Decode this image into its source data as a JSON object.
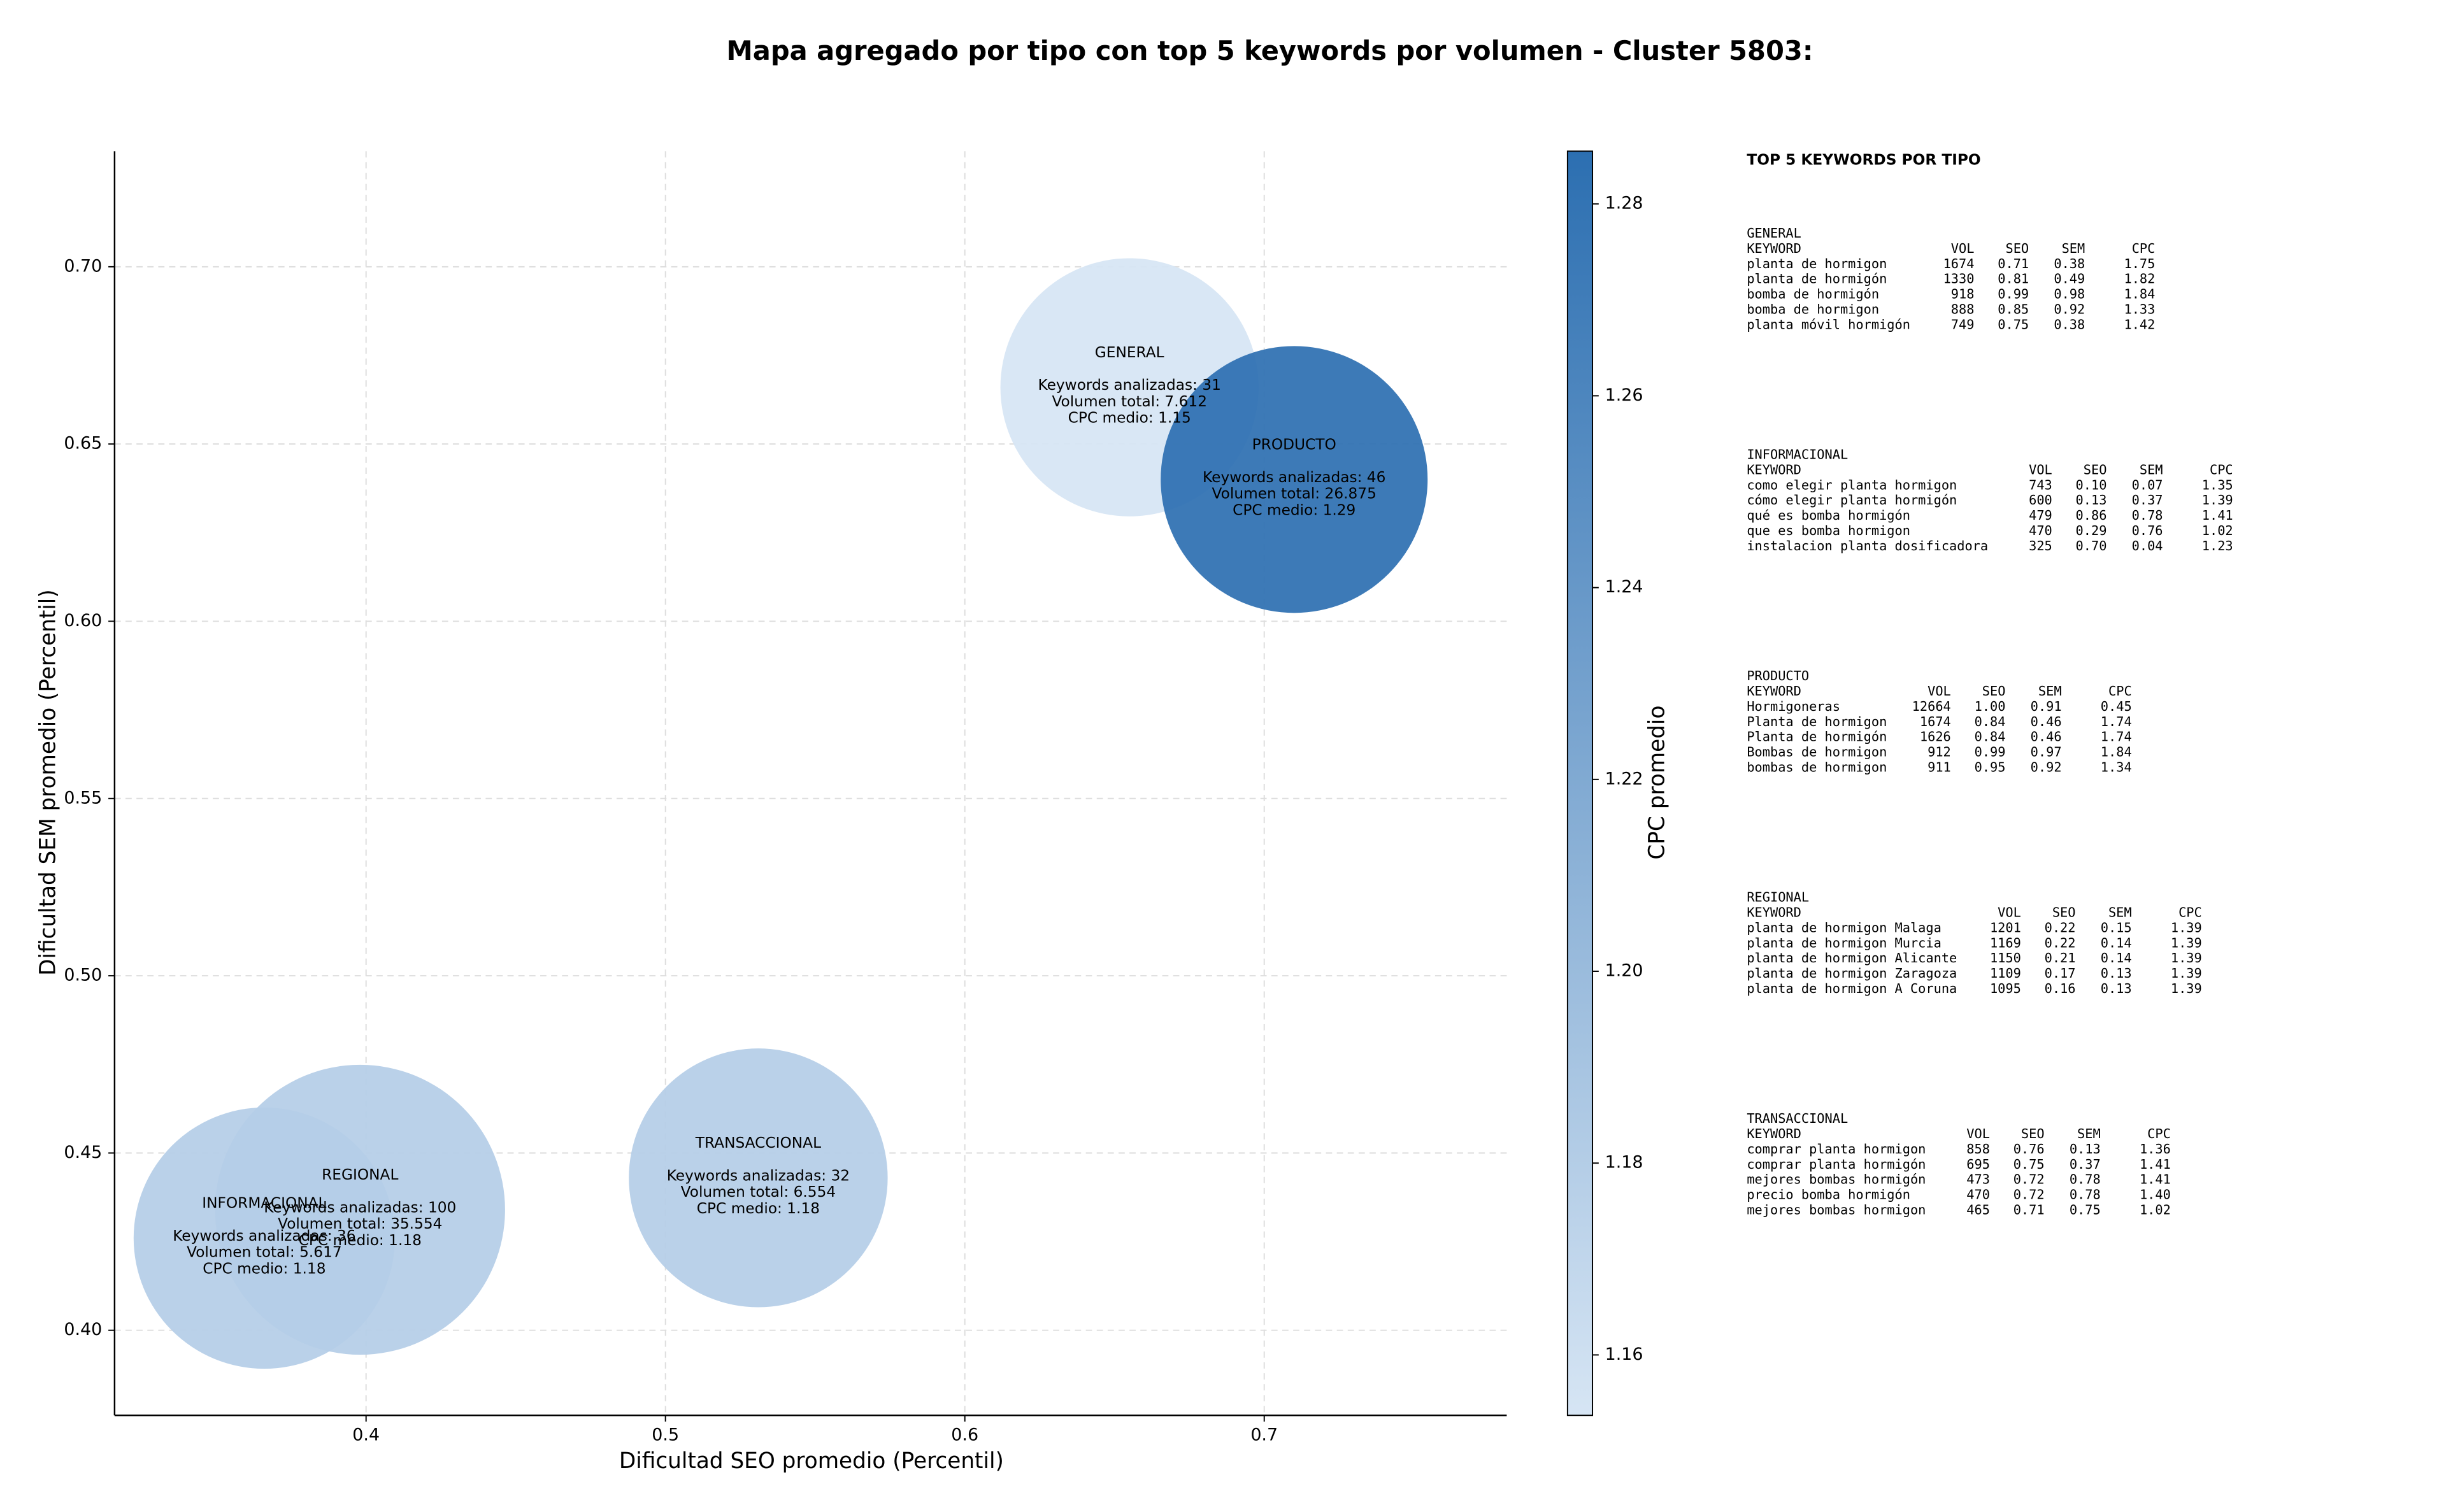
{
  "chart_data": {
    "type": "bubble",
    "title": "Mapa agregado por tipo con top 5 keywords por volumen - Cluster 5803:",
    "xlabel": "Dificultad SEO promedio (Percentil)",
    "ylabel": "Dificultad SEM promedio (Percentil)",
    "categories": [
      "GENERAL",
      "INFORMACIONAL",
      "PRODUCTO",
      "REGIONAL",
      "TRANSACCIONAL"
    ],
    "x": [
      0.655,
      0.366,
      0.71,
      0.398,
      0.531
    ],
    "values": [
      0.666,
      0.426,
      0.64,
      0.434,
      0.443
    ],
    "sizes": [
      31,
      36,
      46,
      100,
      32
    ],
    "cpc": [
      1.154,
      1.18,
      1.285,
      1.18,
      1.18
    ],
    "details": [
      [
        "Keywords analizadas: 31",
        "Volumen total: 7.612",
        "CPC medio: 1.15"
      ],
      [
        "Keywords analizadas: 36",
        "Volumen total: 5.617",
        "CPC medio: 1.18"
      ],
      [
        "Keywords analizadas: 46",
        "Volumen total: 26.875",
        "CPC medio: 1.29"
      ],
      [
        "Keywords analizadas: 100",
        "Volumen total: 35.554",
        "CPC medio: 1.18"
      ],
      [
        "Keywords analizadas: 32",
        "Volumen total: 6.554",
        "CPC medio: 1.18"
      ]
    ],
    "xlim": [
      0.316,
      0.781
    ],
    "ylim": [
      0.376,
      0.7326
    ],
    "xticks": [
      0.4,
      0.5,
      0.6,
      0.7
    ],
    "yticks": [
      {
        "value": 0.4,
        "label": "0.40"
      },
      0.45,
      {
        "value": 0.5,
        "label": "0.50"
      },
      0.55,
      {
        "value": 0.6,
        "label": "0.60"
      },
      0.65,
      {
        "value": 0.7,
        "label": "0.70"
      }
    ],
    "grid": true,
    "colorbar_label": "CPC promedio",
    "clim": [
      1.1537,
      1.2855
    ],
    "cticks": [
      1.16,
      1.18,
      {
        "value": 1.2,
        "label": "1.20"
      },
      1.22,
      1.24,
      1.26,
      1.28
    ],
    "colormap": [
      "#d6e5f4",
      "#2c6fb1"
    ]
  },
  "side_panel": {
    "title": "TOP 5 KEYWORDS POR TIPO",
    "header": [
      "KEYWORD",
      "VOL",
      "SEO",
      "SEM",
      "CPC"
    ],
    "sections": [
      {
        "name": "GENERAL",
        "rows": [
          [
            "planta de hormigon",
            "1674",
            "0.71",
            "0.38",
            "1.75"
          ],
          [
            "planta de hormigón",
            "1330",
            "0.81",
            "0.49",
            "1.82"
          ],
          [
            "bomba de hormigón",
            "918",
            "0.99",
            "0.98",
            "1.84"
          ],
          [
            "bomba de hormigon",
            "888",
            "0.85",
            "0.92",
            "1.33"
          ],
          [
            "planta móvil hormigón",
            "749",
            "0.75",
            "0.38",
            "1.42"
          ]
        ]
      },
      {
        "name": "INFORMACIONAL",
        "rows": [
          [
            "como elegir planta hormigon",
            "743",
            "0.10",
            "0.07",
            "1.35"
          ],
          [
            "cómo elegir planta hormigón",
            "600",
            "0.13",
            "0.37",
            "1.39"
          ],
          [
            "qué es bomba hormigón",
            "479",
            "0.86",
            "0.78",
            "1.41"
          ],
          [
            "que es bomba hormigon",
            "470",
            "0.29",
            "0.76",
            "1.02"
          ],
          [
            "instalacion planta dosificadora",
            "325",
            "0.70",
            "0.04",
            "1.23"
          ]
        ]
      },
      {
        "name": "PRODUCTO",
        "rows": [
          [
            "Hormigoneras",
            "12664",
            "1.00",
            "0.91",
            "0.45"
          ],
          [
            "Planta de hormigon",
            "1674",
            "0.84",
            "0.46",
            "1.74"
          ],
          [
            "Planta de hormigón",
            "1626",
            "0.84",
            "0.46",
            "1.74"
          ],
          [
            "Bombas de hormigon",
            "912",
            "0.99",
            "0.97",
            "1.84"
          ],
          [
            "bombas de hormigon",
            "911",
            "0.95",
            "0.92",
            "1.34"
          ]
        ]
      },
      {
        "name": "REGIONAL",
        "rows": [
          [
            "planta de hormigon Malaga",
            "1201",
            "0.22",
            "0.15",
            "1.39"
          ],
          [
            "planta de hormigon Murcia",
            "1169",
            "0.22",
            "0.14",
            "1.39"
          ],
          [
            "planta de hormigon Alicante",
            "1150",
            "0.21",
            "0.14",
            "1.39"
          ],
          [
            "planta de hormigon Zaragoza",
            "1109",
            "0.17",
            "0.13",
            "1.39"
          ],
          [
            "planta de hormigon A Coruna",
            "1095",
            "0.16",
            "0.13",
            "1.39"
          ]
        ]
      },
      {
        "name": "TRANSACCIONAL",
        "rows": [
          [
            "comprar planta hormigon",
            "858",
            "0.76",
            "0.13",
            "1.36"
          ],
          [
            "comprar planta hormigón",
            "695",
            "0.75",
            "0.37",
            "1.41"
          ],
          [
            "mejores bombas hormigón",
            "473",
            "0.72",
            "0.78",
            "1.41"
          ],
          [
            "precio bomba hormigón",
            "470",
            "0.72",
            "0.78",
            "1.40"
          ],
          [
            "mejores bombas hormigon",
            "465",
            "0.71",
            "0.75",
            "1.02"
          ]
        ]
      }
    ]
  }
}
